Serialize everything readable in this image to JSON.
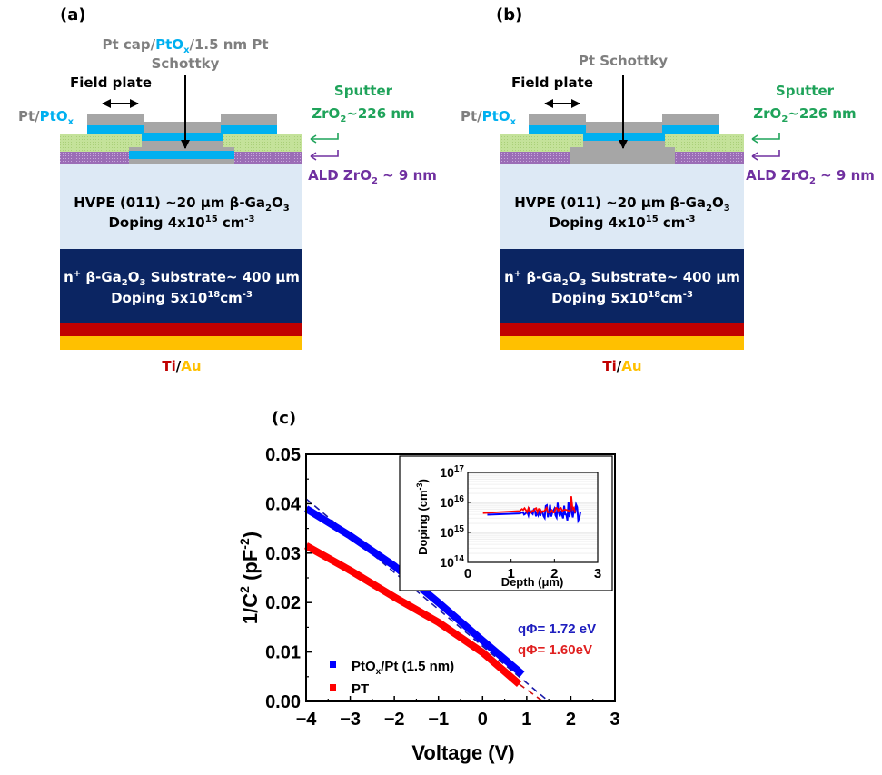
{
  "panels": {
    "a": {
      "label": "(a)",
      "schottky_label_line1_parts": [
        "Pt cap/",
        "PtO",
        "x",
        "/1.5 nm Pt"
      ],
      "schottky_label_line2": "Schottky",
      "field_plate": "Field plate",
      "pt_ptox": [
        "Pt/",
        "PtO",
        "x"
      ],
      "sputter_line1": "Sputter",
      "sputter_line2_parts": [
        "ZrO",
        "2",
        "~226 nm"
      ],
      "ald_parts": [
        "ALD ZrO",
        "2",
        " ~ 9 nm"
      ],
      "hvpe_line1_parts": [
        "HVPE (011) ~20 µm β-Ga",
        "2",
        "O",
        "3"
      ],
      "hvpe_line2_parts": [
        "Doping 4x10",
        "15",
        " cm",
        "-3"
      ],
      "substrate_line1_parts": [
        "n",
        "+",
        " β-Ga",
        "2",
        "O",
        "3",
        " Substrate~ 400 µm"
      ],
      "substrate_line2_parts": [
        "Doping 5x10",
        "18",
        "cm",
        "-3"
      ],
      "contact_parts": [
        "Ti",
        "/",
        "Au"
      ]
    },
    "b": {
      "label": "(b)",
      "schottky_label": "Pt Schottky",
      "field_plate": "Field plate",
      "pt_ptox": [
        "Pt/",
        "PtO",
        "x"
      ],
      "sputter_line1": "Sputter",
      "sputter_line2_parts": [
        "ZrO",
        "2",
        "~226 nm"
      ],
      "ald_parts": [
        "ALD ZrO",
        "2",
        " ~ 9 nm"
      ],
      "hvpe_line1_parts": [
        "HVPE (011) ~20 µm β-Ga",
        "2",
        "O",
        "3"
      ],
      "hvpe_line2_parts": [
        "Doping 4x10",
        "15",
        " cm",
        "-3"
      ],
      "substrate_line1_parts": [
        "n",
        "+",
        " β-Ga",
        "2",
        "O",
        "3",
        " Substrate~ 400 µm"
      ],
      "substrate_line2_parts": [
        "Doping 5x10",
        "18",
        "cm",
        "-3"
      ],
      "contact_parts": [
        "Ti",
        "/",
        "Au"
      ]
    },
    "c": {
      "label": "(c)"
    }
  },
  "colors": {
    "pt_gray": "#a6a6a6",
    "ptox_blue": "#00b0f0",
    "sputter_green": "#c4e29a",
    "sputter_text": "#1fa35a",
    "ald_purple": "#8e5ea8",
    "ald_text": "#7030a0",
    "hvpe": "#dde9f5",
    "substrate": "#0b2562",
    "ti": "#c00000",
    "au": "#ffc000",
    "label_gray": "#7f7f7f",
    "blue_series": "#0000ff",
    "red_series": "#ff0000",
    "blue_text": "#1f1fbf",
    "red_text": "#e02020"
  },
  "chart_data": [
    {
      "type": "line",
      "title": "",
      "xlabel": "Voltage (V)",
      "ylabel_parts": [
        "1/C",
        "2",
        " (pF",
        "-2",
        ")"
      ],
      "xlim": [
        -4,
        3
      ],
      "ylim": [
        0,
        0.05
      ],
      "xticks": [
        -4,
        -3,
        -2,
        -1,
        0,
        1,
        2,
        3
      ],
      "xtick_labels": [
        "−4",
        "−3",
        "−2",
        "−1",
        "0",
        "1",
        "2",
        "3"
      ],
      "yticks": [
        0,
        0.01,
        0.02,
        0.03,
        0.04,
        0.05
      ],
      "ytick_labels": [
        "0.00",
        "0.01",
        "0.02",
        "0.03",
        "0.04",
        "0.05"
      ],
      "grid": false,
      "legend_position": "bottom-left",
      "series": [
        {
          "name": "PtOx/Pt (1.5 nm)",
          "name_parts": [
            "PtO",
            "x",
            "/Pt (1.5 nm)"
          ],
          "color": "#0000ff",
          "x": [
            -4,
            -3,
            -2,
            -1,
            0,
            0.9
          ],
          "y": [
            0.039,
            0.0335,
            0.0274,
            0.02,
            0.0123,
            0.0055
          ],
          "fit_x": [
            -4,
            1.5
          ],
          "fit_y": [
            0.041,
            0.0
          ]
        },
        {
          "name": "PT",
          "name_parts": [
            "PT"
          ],
          "color": "#ff0000",
          "x": [
            -4,
            -3,
            -2,
            -1,
            0,
            0.83
          ],
          "y": [
            0.0315,
            0.0265,
            0.0211,
            0.016,
            0.0099,
            0.0035
          ],
          "fit_x": [
            0.83,
            1.37
          ],
          "fit_y": [
            0.0035,
            0.0
          ]
        }
      ],
      "annotations": [
        {
          "text": "qΦ= 1.72 eV",
          "color": "#1f1fbf",
          "series": "PtOx/Pt (1.5 nm)"
        },
        {
          "text": "qΦ= 1.60eV",
          "color": "#e02020",
          "series": "PT"
        }
      ]
    },
    {
      "type": "line",
      "title": "inset",
      "xlabel": "Depth (μm)",
      "ylabel": "Doping (cm⁻³)",
      "ylabel_parts": [
        "Doping (cm",
        "-3",
        ")"
      ],
      "xlim": [
        0,
        3
      ],
      "ylim": [
        100000000000000.0,
        1e+17
      ],
      "yscale": "log",
      "xticks": [
        0,
        1,
        2,
        3
      ],
      "xtick_labels": [
        "0",
        "1",
        "2",
        "3"
      ],
      "yticks_exp": [
        14,
        15,
        16,
        17
      ],
      "grid": true,
      "series": [
        {
          "name": "PT",
          "color": "#ff0000",
          "x": [
            0.35,
            0.8,
            1.2,
            1.5,
            1.7,
            1.9,
            2.1,
            2.2,
            2.3,
            2.38,
            2.4,
            2.45,
            2.5
          ],
          "y": [
            4400000000000000.0,
            4800000000000000.0,
            5200000000000000.0,
            5600000000000000.0,
            5800000000000000.0,
            6000000000000000.0,
            6300000000000000.0,
            6000000000000000.0,
            6500000000000000.0,
            1.6e+16,
            6000000000000000.0,
            6200000000000000.0,
            6000000000000000.0
          ]
        },
        {
          "name": "PtOx/Pt (1.5 nm)",
          "color": "#0000ff",
          "x": [
            0.45,
            0.8,
            1.2,
            1.5,
            1.7,
            1.9,
            2.1,
            2.2,
            2.3,
            2.4,
            2.45,
            2.5,
            2.55,
            2.6
          ],
          "y": [
            3900000000000000.0,
            3900000000000000.0,
            4300000000000000.0,
            4600000000000000.0,
            4800000000000000.0,
            5000000000000000.0,
            5100000000000000.0,
            4500000000000000.0,
            6800000000000000.0,
            2400000000000000.0,
            8500000000000000.0,
            2800000000000000.0,
            7500000000000000.0,
            4500000000000000.0
          ],
          "noise_band": [
            0.55,
            1.9
          ]
        }
      ]
    }
  ]
}
